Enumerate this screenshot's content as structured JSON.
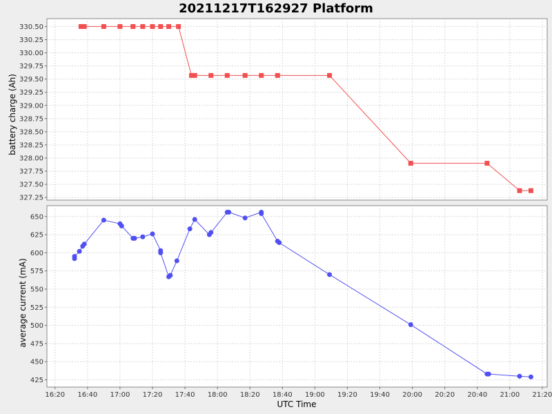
{
  "chart_data": {
    "type": "line",
    "title": "20211217T162927 Platform",
    "xlabel": "UTC Time",
    "x_ticks": [
      "16:20",
      "16:40",
      "17:00",
      "17:20",
      "17:40",
      "18:00",
      "18:20",
      "18:40",
      "19:00",
      "19:20",
      "19:40",
      "20:00",
      "20:20",
      "20:40",
      "21:00",
      "21:20"
    ],
    "grid": true,
    "colors": {
      "charge": "#f25050",
      "current": "#5050f2"
    },
    "subplots": [
      {
        "name": "battery-charge",
        "ylabel": "battery charge (Ah)",
        "ylim": [
          327.2,
          330.65
        ],
        "y_ticks": [
          "327.25",
          "327.50",
          "327.75",
          "328.00",
          "328.25",
          "328.50",
          "328.75",
          "329.00",
          "329.25",
          "329.50",
          "329.75",
          "330.00",
          "330.25",
          "330.50"
        ],
        "marker": "square",
        "series": [
          {
            "x": [
              "16:36",
              "16:38",
              "16:50",
              "17:00",
              "17:08",
              "17:14",
              "17:20",
              "17:25",
              "17:30",
              "17:36",
              "17:44",
              "17:46",
              "17:56",
              "18:06",
              "18:17",
              "18:27",
              "18:37",
              "19:09",
              "19:59",
              "20:46",
              "21:06",
              "21:13"
            ],
            "y": [
              330.5,
              330.5,
              330.5,
              330.5,
              330.5,
              330.5,
              330.5,
              330.5,
              330.5,
              330.5,
              329.57,
              329.57,
              329.57,
              329.57,
              329.57,
              329.57,
              329.57,
              329.57,
              327.9,
              327.9,
              327.38,
              327.38
            ]
          }
        ]
      },
      {
        "name": "average-current",
        "ylabel": "average current (mA)",
        "ylim": [
          415,
          665
        ],
        "y_ticks": [
          "425",
          "450",
          "475",
          "500",
          "525",
          "550",
          "575",
          "600",
          "625",
          "650"
        ],
        "marker": "circle",
        "series": [
          {
            "x": [
              "16:32",
              "16:32",
              "16:35",
              "16:37",
              "16:38",
              "16:50",
              "17:00",
              "17:01",
              "17:08",
              "17:09",
              "17:14",
              "17:20",
              "17:25",
              "17:25",
              "17:30",
              "17:31",
              "17:35",
              "17:43",
              "17:46",
              "17:55",
              "17:56",
              "18:06",
              "18:07",
              "18:17",
              "18:27",
              "18:27",
              "18:37",
              "18:38",
              "19:09",
              "19:59",
              "20:46",
              "20:47",
              "21:06",
              "21:13"
            ],
            "y": [
              592,
              595,
              602,
              609,
              612,
              645,
              640,
              637,
              620,
              620,
              622,
              626,
              603,
              600,
              567,
              569,
              589,
              633,
              646,
              625,
              628,
              656,
              656,
              648,
              656,
              654,
              616,
              614,
              570,
              501,
              433,
              433,
              430,
              429
            ]
          }
        ]
      }
    ]
  }
}
